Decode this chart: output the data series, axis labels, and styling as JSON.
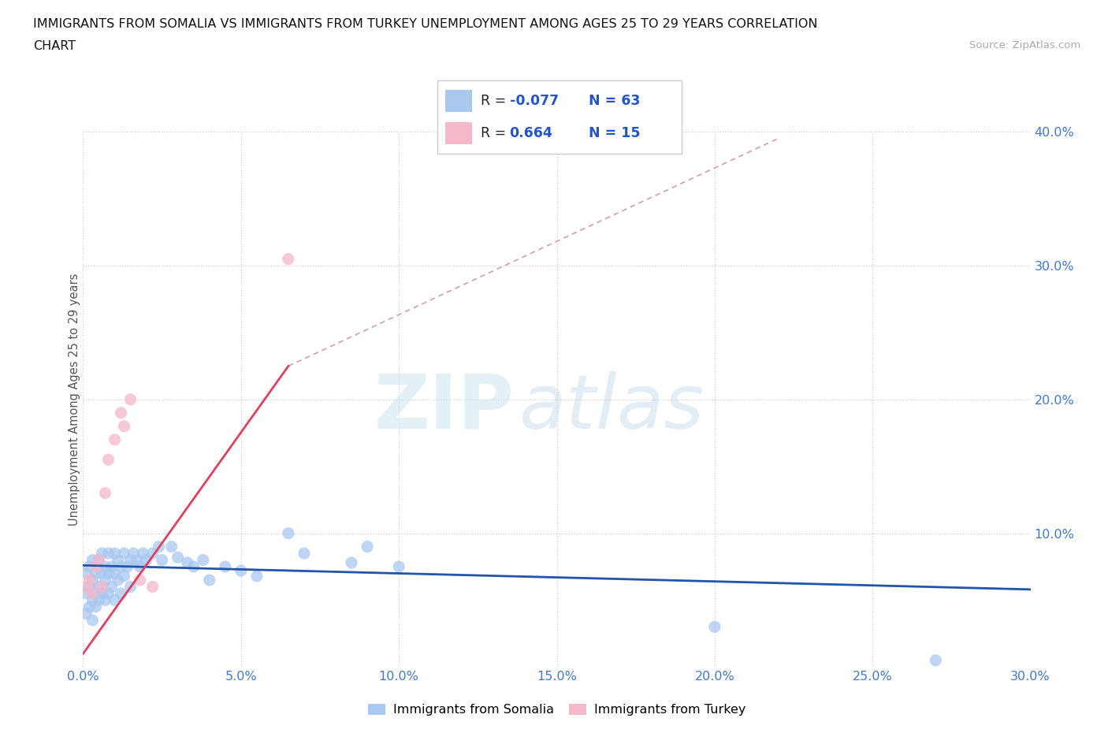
{
  "title_line1": "IMMIGRANTS FROM SOMALIA VS IMMIGRANTS FROM TURKEY UNEMPLOYMENT AMONG AGES 25 TO 29 YEARS CORRELATION",
  "title_line2": "CHART",
  "source_text": "Source: ZipAtlas.com",
  "ylabel": "Unemployment Among Ages 25 to 29 years",
  "xlim": [
    0.0,
    0.3
  ],
  "ylim": [
    0.0,
    0.4
  ],
  "xticks": [
    0.0,
    0.05,
    0.1,
    0.15,
    0.2,
    0.25,
    0.3
  ],
  "yticks": [
    0.0,
    0.1,
    0.2,
    0.3,
    0.4
  ],
  "xtick_labels": [
    "0.0%",
    "5.0%",
    "10.0%",
    "15.0%",
    "20.0%",
    "25.0%",
    "30.0%"
  ],
  "ytick_labels": [
    "",
    "10.0%",
    "20.0%",
    "30.0%",
    "40.0%"
  ],
  "somalia_color": "#a8c8f0",
  "turkey_color": "#f4b8c8",
  "trend_somalia_color": "#2255aa",
  "trend_turkey_color": "#e04060",
  "trend_turkey_dashed_color": "#d0a0a8",
  "r_value_color": "#2255cc",
  "tick_color": "#4477cc",
  "R_somalia_text": "-0.077",
  "N_somalia_text": "63",
  "R_turkey_text": "0.664",
  "N_turkey_text": "15",
  "legend_label_somalia": "Immigrants from Somalia",
  "legend_label_turkey": "Immigrants from Turkey",
  "somalia_x": [
    0.001,
    0.001,
    0.001,
    0.002,
    0.002,
    0.002,
    0.003,
    0.003,
    0.003,
    0.003,
    0.004,
    0.004,
    0.004,
    0.005,
    0.005,
    0.005,
    0.006,
    0.006,
    0.006,
    0.007,
    0.007,
    0.007,
    0.008,
    0.008,
    0.008,
    0.009,
    0.009,
    0.01,
    0.01,
    0.01,
    0.011,
    0.011,
    0.012,
    0.012,
    0.013,
    0.013,
    0.014,
    0.015,
    0.015,
    0.016,
    0.017,
    0.018,
    0.019,
    0.02,
    0.022,
    0.024,
    0.025,
    0.028,
    0.03,
    0.033,
    0.035,
    0.038,
    0.04,
    0.045,
    0.05,
    0.055,
    0.065,
    0.07,
    0.085,
    0.09,
    0.1,
    0.2,
    0.27
  ],
  "somalia_y": [
    0.055,
    0.04,
    0.07,
    0.045,
    0.06,
    0.075,
    0.05,
    0.065,
    0.08,
    0.035,
    0.055,
    0.07,
    0.045,
    0.06,
    0.08,
    0.05,
    0.07,
    0.055,
    0.085,
    0.065,
    0.075,
    0.05,
    0.07,
    0.085,
    0.055,
    0.075,
    0.06,
    0.085,
    0.07,
    0.05,
    0.08,
    0.065,
    0.075,
    0.055,
    0.085,
    0.068,
    0.075,
    0.08,
    0.06,
    0.085,
    0.08,
    0.075,
    0.085,
    0.08,
    0.085,
    0.09,
    0.08,
    0.09,
    0.082,
    0.078,
    0.075,
    0.08,
    0.065,
    0.075,
    0.072,
    0.068,
    0.1,
    0.085,
    0.078,
    0.09,
    0.075,
    0.03,
    0.005
  ],
  "turkey_x": [
    0.001,
    0.002,
    0.003,
    0.004,
    0.005,
    0.006,
    0.007,
    0.008,
    0.01,
    0.012,
    0.013,
    0.015,
    0.018,
    0.022,
    0.065
  ],
  "turkey_y": [
    0.06,
    0.065,
    0.055,
    0.075,
    0.08,
    0.06,
    0.13,
    0.155,
    0.17,
    0.19,
    0.18,
    0.2,
    0.065,
    0.06,
    0.305
  ],
  "somalia_trend": [
    0.0,
    0.076,
    0.3,
    0.058
  ],
  "turkey_trend_solid": [
    0.0,
    0.01,
    0.065,
    0.225
  ],
  "turkey_trend_dash": [
    0.065,
    0.225,
    0.22,
    0.395
  ]
}
